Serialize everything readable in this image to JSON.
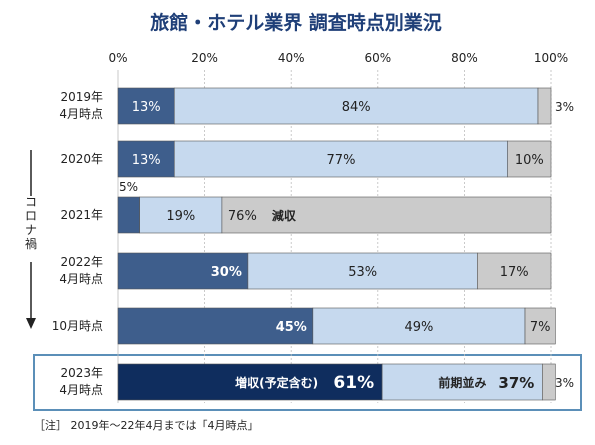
{
  "chart_data": {
    "type": "bar",
    "orientation": "horizontal",
    "stacked": "percent",
    "title": "旅館・ホテル業界 調査時点別業況",
    "xlim": [
      0,
      100
    ],
    "x_ticks": [
      "0%",
      "20%",
      "40%",
      "60%",
      "80%",
      "100%"
    ],
    "side_label": "コロナ禍",
    "footnote": "［注］ 2019年〜22年4月までは「4月時点」",
    "colors": {
      "increase": "#3e5e8c",
      "increase_2023": "#0f2d5e",
      "flat": "#c6d9ee",
      "decrease": "#cbcbcb",
      "title": "#1f3f78",
      "frame": "#5b8fb8"
    },
    "categories": [
      [
        "2019年",
        "4月時点"
      ],
      [
        "2020年"
      ],
      [
        "2021年"
      ],
      [
        "2022年",
        "4月時点"
      ],
      [
        "10月時点"
      ],
      [
        "2023年",
        "4月時点"
      ]
    ],
    "series": [
      {
        "key": "increase",
        "values": [
          13,
          13,
          5,
          30,
          45,
          61
        ]
      },
      {
        "key": "flat",
        "values": [
          84,
          77,
          19,
          53,
          49,
          37
        ]
      },
      {
        "key": "decrease",
        "values": [
          3,
          10,
          76,
          17,
          7,
          3
        ]
      }
    ],
    "data_labels": [
      [
        "13%",
        "84%",
        "3%"
      ],
      [
        "13%",
        "77%",
        "10%"
      ],
      [
        "5%",
        "19%",
        "76%"
      ],
      [
        "30%",
        "53%",
        "17%"
      ],
      [
        "45%",
        "49%",
        "7%"
      ],
      [
        "61%",
        "37%",
        "3%"
      ]
    ],
    "segment_names": {
      "2021": {
        "decrease": "減収"
      },
      "2023": {
        "increase": "増収(予定含む)",
        "flat": "前期並み"
      }
    }
  }
}
